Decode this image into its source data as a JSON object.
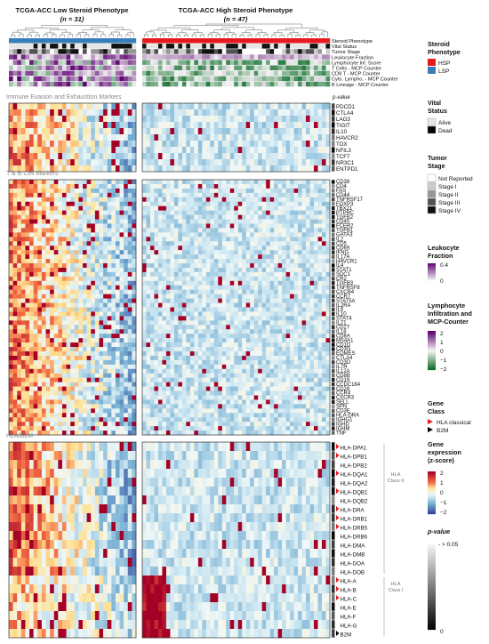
{
  "header": {
    "left_title": "TCGA-ACC Low Steroid Phenotype",
    "left_n": "(n = 31)",
    "right_title": "TCGA-ACC High Steroid Phenotype",
    "right_n": "(n = 47)"
  },
  "annotation_rows": [
    "Steroid Phenotype",
    "Vital Status",
    "Tumor Stage",
    "Leukocyte Fraction",
    "Lymphocyte Inf. Score",
    "T Cells - MCP Counter",
    "CD8 T - MCP Counter",
    "Cyto. Lympho. - MCP Counter",
    "B Lineage - MCP Counter"
  ],
  "sections": [
    {
      "title": "Immune Evasion and Exhaustion Markers",
      "pvalue_label": "p-value",
      "genes": [
        "PDCD1",
        "CTLA4",
        "LAG3",
        "TIGIT",
        "IL10",
        "HAVCR2",
        "TOX",
        "NFIL3",
        "TCF7",
        "NR3C1",
        "ENTPD1"
      ]
    },
    {
      "title": "T & B Cell Markers",
      "genes": [
        "CD38",
        "CD4",
        "FAS",
        "CD44",
        "TNFRSF17",
        "FOXP3",
        "TBX21",
        "PTPRC",
        "TGFB2",
        "CD40",
        "FCER2",
        "TGFB1",
        "GATA3",
        "IL2",
        "CD5",
        "CD69",
        "IFNG",
        "IL17A",
        "HAVCR1",
        "IL4",
        "STAT1",
        "SDC1",
        "CR2",
        "TGFB3",
        "TNFRSF8",
        "CXCR4",
        "CCR7",
        "STAT5A",
        "IL2RA",
        "IL6",
        "IL10",
        "STAT4",
        "IL21",
        "CD27",
        "IL18",
        "CD8A",
        "MS4A1",
        "CD1D",
        "CD3G",
        "EOMES",
        "CTLA4",
        "CD3D",
        "IL7R",
        "IL12A",
        "CD8B",
        "CD19",
        "CCDC184",
        "CD28",
        "CCR4",
        "CXCR3",
        "SELL",
        "SPN",
        "CD3E",
        "HLA-DRA",
        "IGHG1",
        "IGHD",
        "IGHM",
        "TNF"
      ]
    },
    {
      "title": "HLA/B2M",
      "genes": [
        "HLA-DPA1",
        "HLA-DPB1",
        "HLA-DPB2",
        "HLA-DQA1",
        "HLA-DQA2",
        "HLA-DQB1",
        "HLA-DQB2",
        "HLA-DRA",
        "HLA-DRB1",
        "HLA-DRB5",
        "HLA-DRB6",
        "HLA-DMA",
        "HLA-DMB",
        "HLA-DOA",
        "HLA-DOB",
        "HLA-A",
        "HLA-B",
        "HLA-C",
        "HLA-E",
        "HLA-F",
        "HLA-G",
        "B2M"
      ],
      "class_groups": [
        {
          "label": "HLA Class II"
        },
        {
          "label": "HLA Class I"
        }
      ]
    }
  ],
  "legend": {
    "steroid": {
      "title": "Steroid Phenotype",
      "items": [
        {
          "label": "HSP",
          "color": "#e41a1c"
        },
        {
          "label": "LSP",
          "color": "#377eb8"
        }
      ]
    },
    "vital": {
      "title": "Vital Status",
      "items": [
        {
          "label": "Alive",
          "color": "#e6e6e6"
        },
        {
          "label": "Dead",
          "color": "#000000"
        }
      ]
    },
    "stage": {
      "title": "Tumor Stage",
      "items": [
        {
          "label": "Not Reported",
          "color": "#ffffff"
        },
        {
          "label": "Stage I",
          "color": "#cccccc"
        },
        {
          "label": "Stage II",
          "color": "#969696"
        },
        {
          "label": "Stage III",
          "color": "#525252"
        },
        {
          "label": "Stage IV",
          "color": "#111111"
        }
      ]
    },
    "leuk": {
      "title": "Leukocyte Fraction",
      "max": "0.4",
      "min": "0"
    },
    "lymph": {
      "title": "Lymphocyte Infiltration and MCP-Counter",
      "ticks": [
        "2",
        "1",
        "0",
        "−1",
        "−2"
      ]
    },
    "gene_class": {
      "title": "Gene Class",
      "items": [
        {
          "label": "HLA classical",
          "color": "#e41a1c"
        },
        {
          "label": "B2M",
          "color": "#000000"
        }
      ]
    },
    "expr": {
      "title": "Gene expression (z-score)",
      "ticks": [
        "2",
        "1",
        "0",
        "−1",
        "−2"
      ]
    },
    "pval": {
      "title": "p-value",
      "ticks": [
        "- > 0.05",
        "0"
      ]
    }
  }
}
